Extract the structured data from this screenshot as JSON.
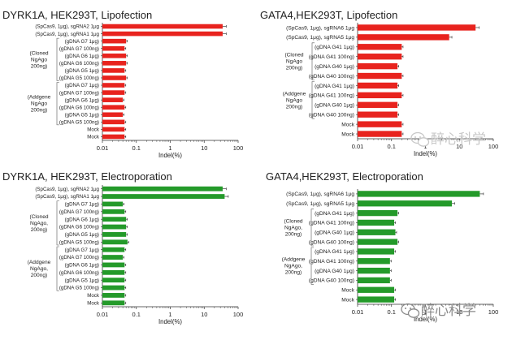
{
  "chart_data": [
    {
      "type": "bar",
      "orientation": "horizontal",
      "title": "DYRK1A, HEK293T, Lipofection",
      "xlabel": "Indel(%)",
      "xscale": "log",
      "xlim": [
        0.01,
        100
      ],
      "xticks": [
        "0.01",
        "0.1",
        "1",
        "10",
        "100"
      ],
      "bar_color": "#e8231e",
      "categories": [
        "(SpCas9, 1μg), sgRNA2 1μg",
        "(SpCas9, 1μg), sgRNA1 1μg",
        "(gDNA G7 1μg)",
        "(gDNA G7 100ng)",
        "(gDNA G6 1μg)",
        "(gDNA G6 100ng)",
        "(gDNA G5 1μg)",
        "(gDNA G5 100ng)",
        "(gDNA G7 1μg)",
        "(gDNA G7 100ng)",
        "(gDNA G6 1μg)",
        "(gDNA G6 100ng)",
        "(gDNA G5 1μg)",
        "(gDNA G5 100ng)",
        "Mock",
        "Mock"
      ],
      "values": [
        35,
        35,
        0.05,
        0.045,
        0.05,
        0.05,
        0.045,
        0.05,
        0.045,
        0.045,
        0.04,
        0.045,
        0.04,
        0.045,
        0.045,
        0.045
      ],
      "groups": [
        {
          "label": [
            "(Cloned",
            "NgAgo",
            "200ng)"
          ],
          "from": 2,
          "to": 7
        },
        {
          "label": [
            "(Addgene",
            "NgAgo",
            "200ng)"
          ],
          "from": 8,
          "to": 13
        }
      ]
    },
    {
      "type": "bar",
      "orientation": "horizontal",
      "title": "GATA4,HEK293T, Lipofection",
      "xlabel": "Indel(%)",
      "xscale": "log",
      "xlim": [
        0.01,
        100
      ],
      "xticks": [
        "0.01",
        "0.1",
        "1",
        "10",
        "100"
      ],
      "bar_color": "#e8231e",
      "categories": [
        "(SpCas9, 1μg), sgRNA6 1μg",
        "(SpCas9, 1μg), sgRNA5 1μg",
        "(gDNA G41 1μg)",
        "(gDNA G41 100ng)",
        "(gDNA G40 1μg)",
        "(gDNA G40 100ng)",
        "(gDNA G41 1μg)",
        "(gDNA G41 100ng)",
        "(gDNA G40 1μg)",
        "(gDNA G40 100ng)",
        "Mock",
        "Mock"
      ],
      "values": [
        30,
        5,
        0.2,
        0.2,
        0.15,
        0.2,
        0.15,
        0.2,
        0.15,
        0.15,
        0.2,
        0.2
      ],
      "groups": [
        {
          "label": [
            "(Cloned",
            "NgAgo",
            "200ng)"
          ],
          "from": 2,
          "to": 5
        },
        {
          "label": [
            "(Addgene",
            "NgAgo",
            "200ng)"
          ],
          "from": 6,
          "to": 9
        }
      ]
    },
    {
      "type": "bar",
      "orientation": "horizontal",
      "title": "DYRK1A, HEK293T, Electroporation",
      "xlabel": "Indel(%)",
      "xscale": "log",
      "xlim": [
        0.01,
        100
      ],
      "xticks": [
        "0.01",
        "0.1",
        "1",
        "10",
        "100"
      ],
      "bar_color": "#249a2a",
      "categories": [
        "(SpCas9, 1μg), sgRNA2 1μg",
        "(SpCas9, 1μg), sgRNA1 1μg",
        "(gDNA G7 1μg)",
        "(gDNA G7 100ng)",
        "(gDNA G6 1μg)",
        "(gDNA G6 100ng)",
        "(gDNA G5 1μg)",
        "(gDNA G5 100ng)",
        "(gDNA G7 1μg)",
        "(gDNA G7 100ng)",
        "(gDNA G6 1μg)",
        "(gDNA G6 100ng)",
        "(gDNA G5 1μg)",
        "(gDNA G5 100ng)",
        "Mock",
        "Mock"
      ],
      "values": [
        35,
        40,
        0.04,
        0.045,
        0.05,
        0.05,
        0.05,
        0.055,
        0.045,
        0.04,
        0.045,
        0.045,
        0.045,
        0.045,
        0.045,
        0.045
      ],
      "groups": [
        {
          "label": [
            "(Cloned",
            "NgAgo,",
            "200ng)"
          ],
          "from": 2,
          "to": 7
        },
        {
          "label": [
            "(Addgene",
            "NgAgo,",
            "200ng)"
          ],
          "from": 8,
          "to": 13
        }
      ]
    },
    {
      "type": "bar",
      "orientation": "horizontal",
      "title": "GATA4,HEK293T, Electroporation",
      "xlabel": "Indel(%)",
      "xscale": "log",
      "xlim": [
        0.01,
        100
      ],
      "xticks": [
        "0.01",
        "0.1",
        "1",
        "10",
        "100"
      ],
      "bar_color": "#249a2a",
      "categories": [
        "(SpCas9, 1μg), sgRNA6 1μg",
        "(SpCas9, 1μg), sgRNA5 1μg",
        "(gDNA G41 1μg)",
        "(gDNA G41 100ng)",
        "(gDNA G40 1μg)",
        "(gDNA G40 100ng)",
        "(gDNA G41 1μg)",
        "(gDNA G41 100ng)",
        "(gDNA G40 1μg)",
        "(gDNA G40 100ng)",
        "Mock",
        "Mock"
      ],
      "values": [
        40,
        6,
        0.15,
        0.12,
        0.13,
        0.15,
        0.12,
        0.09,
        0.09,
        0.09,
        0.12,
        0.12
      ],
      "groups": [
        {
          "label": [
            "(Cloned",
            "NgAgo,",
            "200ng)"
          ],
          "from": 2,
          "to": 5
        },
        {
          "label": [
            "(Addgene",
            "NgAgo,",
            "200ng)"
          ],
          "from": 6,
          "to": 9
        }
      ]
    }
  ],
  "watermark": {
    "text_top": "醉心科学",
    "text_bottom": "醉心科学",
    "colors": {
      "top": "#c8c8c8",
      "bottom": "#8a8a8a"
    }
  }
}
